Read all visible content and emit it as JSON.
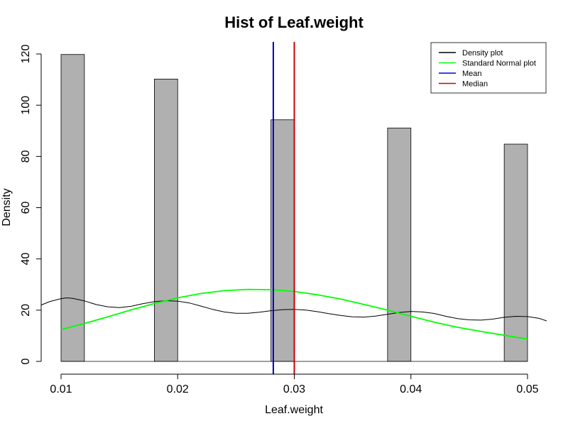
{
  "chart_data": {
    "type": "bar",
    "title": "Hist of Leaf.weight",
    "xlabel": "Leaf.weight",
    "ylabel": "Density",
    "xlim": [
      0.01,
      0.052
    ],
    "ylim": [
      0,
      120
    ],
    "x_ticks": [
      0.01,
      0.02,
      0.03,
      0.04,
      0.05
    ],
    "x_tick_labels": [
      "0.01",
      "0.02",
      "0.03",
      "0.04",
      "0.05"
    ],
    "y_ticks": [
      0,
      20,
      40,
      60,
      80,
      100,
      120
    ],
    "y_tick_labels": [
      "0",
      "20",
      "40",
      "60",
      "80",
      "100",
      "120"
    ],
    "bar_color": "#b0b0b0",
    "bins": [
      {
        "x0": 0.01,
        "x1": 0.012,
        "value": 119.8
      },
      {
        "x0": 0.018,
        "x1": 0.02,
        "value": 110.2
      },
      {
        "x0": 0.028,
        "x1": 0.03,
        "value": 94.3
      },
      {
        "x0": 0.038,
        "x1": 0.04,
        "value": 91.1
      },
      {
        "x0": 0.048,
        "x1": 0.05,
        "value": 84.8
      }
    ],
    "series": [
      {
        "name": "Density plot",
        "type": "line",
        "color": "#000000",
        "x": [
          0.0083,
          0.009,
          0.01,
          0.0105,
          0.011,
          0.012,
          0.013,
          0.014,
          0.015,
          0.016,
          0.017,
          0.018,
          0.019,
          0.02,
          0.021,
          0.022,
          0.023,
          0.024,
          0.025,
          0.026,
          0.027,
          0.028,
          0.029,
          0.03,
          0.031,
          0.032,
          0.033,
          0.034,
          0.035,
          0.036,
          0.037,
          0.038,
          0.039,
          0.04,
          0.041,
          0.042,
          0.043,
          0.044,
          0.045,
          0.046,
          0.047,
          0.048,
          0.049,
          0.05,
          0.051,
          0.0518
        ],
        "y": [
          22.0,
          23.3,
          24.5,
          24.8,
          24.6,
          23.6,
          22.2,
          21.3,
          21.0,
          21.5,
          22.5,
          23.3,
          23.7,
          23.5,
          22.8,
          21.6,
          20.3,
          19.3,
          18.8,
          18.8,
          19.2,
          19.8,
          20.2,
          20.3,
          20.0,
          19.4,
          18.6,
          17.9,
          17.4,
          17.3,
          17.7,
          18.4,
          19.1,
          19.5,
          19.3,
          18.7,
          17.6,
          16.7,
          16.2,
          16.1,
          16.5,
          17.2,
          17.6,
          17.5,
          16.8,
          15.8
        ]
      },
      {
        "name": "Standard Normal plot",
        "type": "line",
        "color": "#00ff00",
        "x": [
          0.01,
          0.012,
          0.014,
          0.016,
          0.018,
          0.02,
          0.022,
          0.024,
          0.026,
          0.028,
          0.03,
          0.032,
          0.034,
          0.036,
          0.038,
          0.04,
          0.042,
          0.044,
          0.046,
          0.048,
          0.05
        ],
        "y": [
          12.4,
          14.8,
          17.4,
          20.1,
          22.6,
          24.8,
          26.5,
          27.6,
          28.1,
          28.0,
          27.3,
          26.0,
          24.3,
          22.2,
          20.0,
          17.6,
          15.3,
          13.3,
          11.7,
          10.2,
          8.7
        ]
      },
      {
        "name": "Mean",
        "type": "vline",
        "color": "#0000cd",
        "x": 0.0282
      },
      {
        "name": "Median",
        "type": "vline",
        "color": "#cd0000",
        "x": 0.03
      }
    ],
    "legend": {
      "position": "top-right",
      "entries": [
        {
          "label": "Density plot",
          "color": "#000000"
        },
        {
          "label": "Standard Normal plot",
          "color": "#00ff00"
        },
        {
          "label": "Mean",
          "color": "#0000cd"
        },
        {
          "label": "Median",
          "color": "#cd0000"
        }
      ]
    },
    "grid": false
  }
}
